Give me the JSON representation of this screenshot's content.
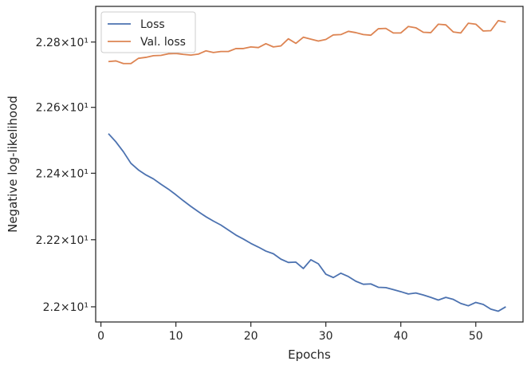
{
  "chart_data": {
    "type": "line",
    "xlabel": "Epochs",
    "ylabel": "Negative log-likelihood",
    "xlim": [
      -0.7,
      56.3
    ],
    "ylim": [
      21.955,
      22.91
    ],
    "x_ticks": [
      0,
      10,
      20,
      30,
      40,
      50
    ],
    "y_ticks": [
      {
        "value": 22.0,
        "label": "2.2×10¹"
      },
      {
        "value": 22.2,
        "label": "2.22×10¹"
      },
      {
        "value": 22.4,
        "label": "2.24×10¹"
      },
      {
        "value": 22.6,
        "label": "2.26×10¹"
      },
      {
        "value": 22.8,
        "label": "2.28×10¹"
      }
    ],
    "y_scale": "log",
    "legend_position": "top-left",
    "grid": false,
    "series": [
      {
        "name": "Loss",
        "color": "#4c72b0",
        "x": [
          1,
          2,
          3,
          4,
          5,
          6,
          7,
          8,
          9,
          10,
          11,
          12,
          13,
          14,
          15,
          16,
          17,
          18,
          19,
          20,
          21,
          22,
          23,
          24,
          25,
          26,
          27,
          28,
          29,
          30,
          31,
          32,
          33,
          34,
          35,
          36,
          37,
          38,
          39,
          40,
          41,
          42,
          43,
          44,
          45,
          46,
          47,
          48,
          49,
          50,
          51,
          52,
          53,
          54
        ],
        "values": [
          22.52,
          22.495,
          22.465,
          22.43,
          22.41,
          22.395,
          22.383,
          22.367,
          22.352,
          22.335,
          22.317,
          22.3,
          22.284,
          22.269,
          22.256,
          22.244,
          22.229,
          22.214,
          22.202,
          22.189,
          22.178,
          22.166,
          22.158,
          22.142,
          22.132,
          22.133,
          22.114,
          22.14,
          22.128,
          22.097,
          22.087,
          22.1,
          22.09,
          22.076,
          22.067,
          22.068,
          22.058,
          22.057,
          22.051,
          22.045,
          22.038,
          22.041,
          22.035,
          22.028,
          22.02,
          22.028,
          22.022,
          22.01,
          22.003,
          22.013,
          22.007,
          21.993,
          21.987,
          22.0
        ]
      },
      {
        "name": "Val. loss",
        "color": "#dd8452",
        "x": [
          1,
          2,
          3,
          4,
          5,
          6,
          7,
          8,
          9,
          10,
          11,
          12,
          13,
          14,
          15,
          16,
          17,
          18,
          19,
          20,
          21,
          22,
          23,
          24,
          25,
          26,
          27,
          28,
          29,
          30,
          31,
          32,
          33,
          34,
          35,
          36,
          37,
          38,
          39,
          40,
          41,
          42,
          43,
          44,
          45,
          46,
          47,
          48,
          49,
          50,
          51,
          52,
          53,
          54
        ],
        "values": [
          22.74,
          22.742,
          22.734,
          22.734,
          22.75,
          22.753,
          22.758,
          22.759,
          22.764,
          22.765,
          22.762,
          22.76,
          22.763,
          22.773,
          22.768,
          22.771,
          22.771,
          22.78,
          22.78,
          22.785,
          22.783,
          22.795,
          22.785,
          22.788,
          22.81,
          22.796,
          22.815,
          22.809,
          22.803,
          22.808,
          22.822,
          22.823,
          22.833,
          22.829,
          22.823,
          22.821,
          22.841,
          22.842,
          22.828,
          22.828,
          22.848,
          22.844,
          22.83,
          22.829,
          22.855,
          22.853,
          22.831,
          22.828,
          22.858,
          22.855,
          22.834,
          22.835,
          22.866,
          22.861
        ]
      }
    ]
  }
}
